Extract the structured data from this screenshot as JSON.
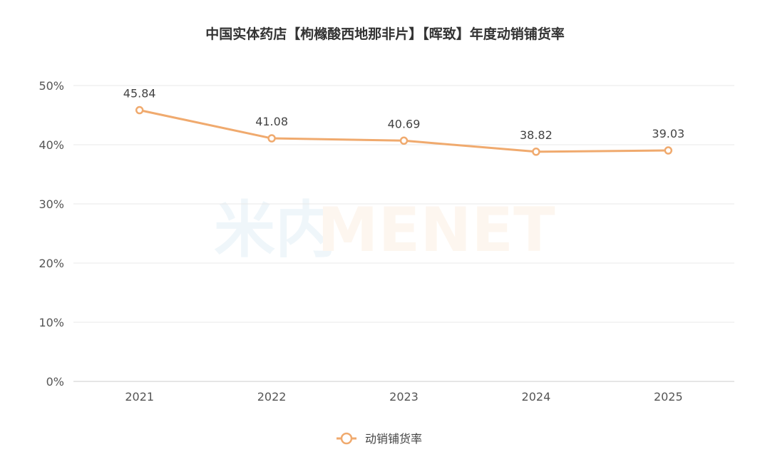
{
  "chart_data": {
    "type": "line",
    "title": "中国实体药店【枸橼酸西地那非片】【晖致】年度动销铺货率",
    "categories": [
      "2021",
      "2022",
      "2023",
      "2024",
      "2025"
    ],
    "series": [
      {
        "name": "动销铺货率",
        "values": [
          45.84,
          41.08,
          40.69,
          38.82,
          39.03
        ],
        "color": "#F0AA6E"
      }
    ],
    "data_labels": [
      "45.84",
      "41.08",
      "40.69",
      "38.82",
      "39.03"
    ],
    "ylim": [
      0,
      50
    ],
    "yticks": [
      0,
      10,
      20,
      30,
      40,
      50
    ],
    "ytick_labels": [
      "0%",
      "10%",
      "20%",
      "30%",
      "40%",
      "50%"
    ],
    "grid": true,
    "legend_position": "bottom-center",
    "watermark": "米内MENET"
  }
}
